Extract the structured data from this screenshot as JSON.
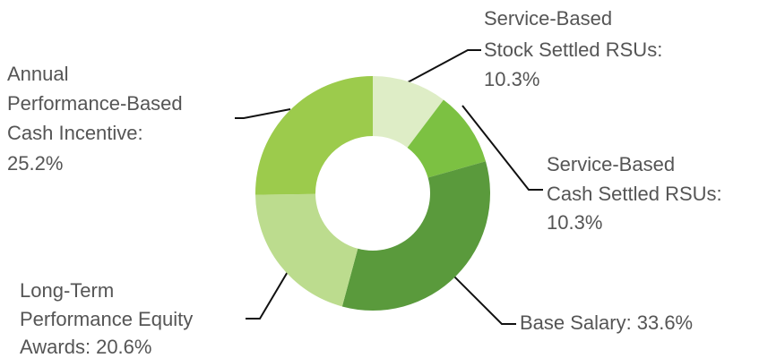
{
  "chart_data": {
    "type": "donut",
    "categories": [
      [
        "Service-Based",
        "Stock Settled RSUs:"
      ],
      [
        "Service-Based",
        "Cash Settled RSUs:"
      ],
      [
        "Base Salary:"
      ],
      [
        "Long-Term",
        "Performance Equity",
        "Awards:"
      ],
      [
        "Annual",
        "Performance-Based",
        "Cash Incentive:"
      ]
    ],
    "values": [
      10.3,
      10.3,
      33.6,
      20.6,
      25.2
    ],
    "value_labels": [
      "10.3%",
      "10.3%",
      "33.6%",
      "20.6%",
      "25.2%"
    ],
    "colors": [
      "#deedc6",
      "#7cc142",
      "#5a9a3c",
      "#bcdc8e",
      "#9ccb4c"
    ]
  }
}
